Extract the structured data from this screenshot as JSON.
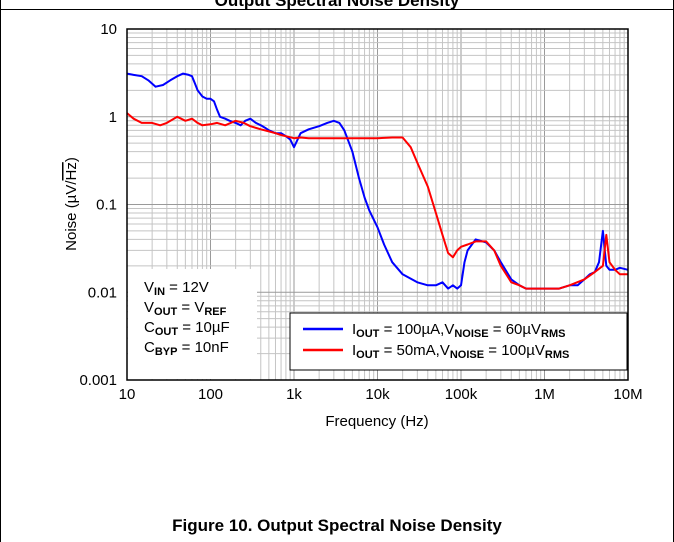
{
  "header": {
    "title": "Output Spectral Noise Density"
  },
  "caption": "Figure 10. Output Spectral Noise Density",
  "chart_data": {
    "type": "line",
    "title": "",
    "xlabel": "Frequency (Hz)",
    "ylabel_prefix": "Noise (µV/",
    "ylabel_radicand": "Hz",
    "ylabel_suffix": ")",
    "x_scale": "log",
    "y_scale": "log",
    "xlim": [
      10,
      10000000
    ],
    "ylim": [
      0.001,
      10
    ],
    "grid": true,
    "x_ticks": [
      {
        "value": 10,
        "label": "10"
      },
      {
        "value": 100,
        "label": "100"
      },
      {
        "value": 1000,
        "label": "1k"
      },
      {
        "value": 10000,
        "label": "10k"
      },
      {
        "value": 100000,
        "label": "100k"
      },
      {
        "value": 1000000,
        "label": "1M"
      },
      {
        "value": 10000000,
        "label": "10M"
      }
    ],
    "y_ticks": [
      {
        "value": 10,
        "label": "10"
      },
      {
        "value": 1,
        "label": "1"
      },
      {
        "value": 0.1,
        "label": "0.1"
      },
      {
        "value": 0.01,
        "label": "0.01"
      },
      {
        "value": 0.001,
        "label": "0.001"
      }
    ],
    "conditions": [
      {
        "pre": "V",
        "sub": "IN",
        "post": " = 12V"
      },
      {
        "pre": "V",
        "sub": "OUT",
        "post": " = V",
        "sub2": "REF"
      },
      {
        "pre": "C",
        "sub": "OUT",
        "post": " = 10µF"
      },
      {
        "pre": "C",
        "sub": "BYP",
        "post": " = 10nF"
      }
    ],
    "legend_position": "bottom-right",
    "series": [
      {
        "color": "#0000ff",
        "legend": {
          "p1": "I",
          "s1": "OUT",
          "p2": " = 100µA,V",
          "s2": "NOISE",
          "p3": " = 60µV",
          "s3": "RMS"
        },
        "x": [
          10,
          12,
          15,
          18,
          22,
          27,
          33,
          40,
          47,
          55,
          60,
          65,
          70,
          80,
          90,
          100,
          110,
          120,
          130,
          150,
          170,
          200,
          230,
          260,
          300,
          350,
          400,
          450,
          500,
          600,
          700,
          800,
          900,
          1000,
          1200,
          1500,
          2000,
          2500,
          3000,
          3500,
          4000,
          5000,
          6000,
          7000,
          8000,
          10000,
          12000,
          15000,
          20000,
          30000,
          40000,
          50000,
          60000,
          70000,
          80000,
          90000,
          100000,
          110000,
          120000,
          150000,
          200000,
          250000,
          300000,
          400000,
          500000,
          600000,
          700000,
          800000,
          1000000,
          1200000,
          1500000,
          2000000,
          2500000,
          3000000,
          3500000,
          4000000,
          4500000,
          5000000,
          5500000,
          6000000,
          7000000,
          8000000,
          10000000
        ],
        "y": [
          3.1,
          3.0,
          2.9,
          2.6,
          2.2,
          2.3,
          2.6,
          2.9,
          3.1,
          3.0,
          2.9,
          2.4,
          2.0,
          1.7,
          1.6,
          1.6,
          1.5,
          1.2,
          1.0,
          0.95,
          0.9,
          0.85,
          0.8,
          0.9,
          0.95,
          0.85,
          0.8,
          0.75,
          0.7,
          0.65,
          0.65,
          0.6,
          0.55,
          0.45,
          0.65,
          0.72,
          0.78,
          0.85,
          0.9,
          0.85,
          0.7,
          0.4,
          0.2,
          0.12,
          0.085,
          0.055,
          0.035,
          0.022,
          0.016,
          0.013,
          0.012,
          0.012,
          0.013,
          0.011,
          0.012,
          0.011,
          0.012,
          0.022,
          0.03,
          0.04,
          0.037,
          0.03,
          0.022,
          0.014,
          0.012,
          0.011,
          0.011,
          0.011,
          0.011,
          0.011,
          0.011,
          0.012,
          0.012,
          0.014,
          0.016,
          0.017,
          0.022,
          0.05,
          0.02,
          0.018,
          0.018,
          0.019,
          0.018
        ]
      },
      {
        "color": "#ff0000",
        "legend": {
          "p1": "I",
          "s1": "OUT",
          "p2": " = 50mA,V",
          "s2": "NOISE",
          "p3": " = 100µV",
          "s3": "RMS"
        },
        "x": [
          10,
          12,
          15,
          20,
          25,
          30,
          40,
          50,
          60,
          70,
          80,
          100,
          120,
          150,
          200,
          250,
          300,
          400,
          500,
          600,
          700,
          800,
          1000,
          1200,
          1500,
          2000,
          3000,
          5000,
          7000,
          10000,
          15000,
          20000,
          25000,
          30000,
          40000,
          50000,
          60000,
          70000,
          80000,
          90000,
          100000,
          120000,
          150000,
          200000,
          250000,
          300000,
          400000,
          500000,
          600000,
          800000,
          1000000,
          1500000,
          2000000,
          3000000,
          4000000,
          5000000,
          5500000,
          6000000,
          7000000,
          8000000,
          10000000
        ],
        "y": [
          1.1,
          0.95,
          0.85,
          0.85,
          0.8,
          0.85,
          1.0,
          0.9,
          0.95,
          0.85,
          0.8,
          0.82,
          0.85,
          0.8,
          0.9,
          0.85,
          0.78,
          0.72,
          0.68,
          0.65,
          0.62,
          0.6,
          0.57,
          0.58,
          0.57,
          0.57,
          0.57,
          0.57,
          0.57,
          0.57,
          0.58,
          0.58,
          0.45,
          0.3,
          0.16,
          0.08,
          0.045,
          0.028,
          0.025,
          0.03,
          0.033,
          0.035,
          0.038,
          0.038,
          0.03,
          0.02,
          0.013,
          0.012,
          0.011,
          0.011,
          0.011,
          0.011,
          0.012,
          0.014,
          0.017,
          0.02,
          0.045,
          0.022,
          0.018,
          0.016,
          0.016
        ]
      }
    ]
  }
}
